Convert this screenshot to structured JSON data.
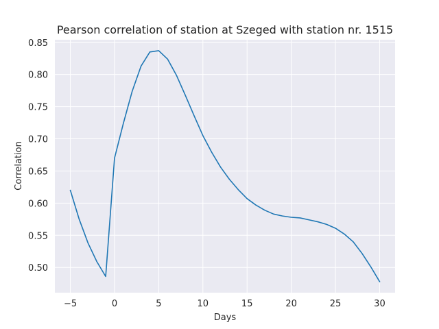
{
  "chart_data": {
    "type": "line",
    "title": "Pearson correlation of station at Szeged with station nr. 1515",
    "xlabel": "Days",
    "ylabel": "Correlation",
    "xlim": [
      -6.75,
      31.75
    ],
    "ylim": [
      0.4608,
      0.854
    ],
    "xticks": [
      -5,
      0,
      5,
      10,
      15,
      20,
      25,
      30
    ],
    "xtick_labels": [
      "−5",
      "0",
      "5",
      "10",
      "15",
      "20",
      "25",
      "30"
    ],
    "yticks": [
      0.5,
      0.55,
      0.6,
      0.65,
      0.7,
      0.75,
      0.8,
      0.85
    ],
    "ytick_labels": [
      "0.50",
      "0.55",
      "0.60",
      "0.65",
      "0.70",
      "0.75",
      "0.80",
      "0.85"
    ],
    "grid": true,
    "style": "seaborn-darkgrid",
    "colors": {
      "line": "#1f77b4",
      "plot_bg": "#eaeaf2",
      "grid": "#ffffff"
    },
    "series": [
      {
        "x": [
          -5,
          -4,
          -3,
          -2,
          -1,
          0,
          1,
          2,
          3,
          4,
          5,
          6,
          7,
          8,
          9,
          10,
          11,
          12,
          13,
          14,
          15,
          16,
          17,
          18,
          19,
          20,
          21,
          22,
          23,
          24,
          25,
          26,
          27,
          28,
          29,
          30
        ],
        "values": [
          0.62,
          0.575,
          0.538,
          0.509,
          0.486,
          0.67,
          0.724,
          0.774,
          0.813,
          0.835,
          0.837,
          0.824,
          0.799,
          0.768,
          0.736,
          0.705,
          0.679,
          0.656,
          0.637,
          0.621,
          0.607,
          0.597,
          0.589,
          0.583,
          0.58,
          0.578,
          0.577,
          0.574,
          0.571,
          0.567,
          0.561,
          0.552,
          0.54,
          0.522,
          0.501,
          0.478
        ]
      }
    ]
  }
}
